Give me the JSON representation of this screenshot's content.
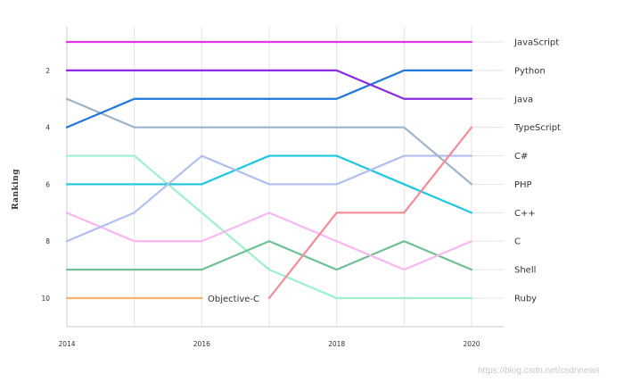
{
  "chart_data": {
    "type": "line",
    "title": "",
    "ylabel": "Ranking",
    "xlabel": "",
    "x": [
      2014,
      2015,
      2016,
      2017,
      2018,
      2019,
      2020
    ],
    "x_tick_labels": [
      "2014",
      "2016",
      "2018",
      "2020"
    ],
    "y_tick_labels": [
      "2",
      "4",
      "6",
      "8",
      "10"
    ],
    "ylim": [
      1,
      10
    ],
    "y_inverted": true,
    "grid": "vertical",
    "legend": "right (labels at line ends)",
    "series": [
      {
        "name": "JavaScript",
        "color": "#e535e8",
        "values": [
          1,
          1,
          1,
          1,
          1,
          1,
          1
        ]
      },
      {
        "name": "Python",
        "color": "#8a2be2",
        "values": [
          2,
          2,
          2,
          2,
          2,
          3,
          3
        ]
      },
      {
        "name": "Java",
        "color": "#1f77d9",
        "values": [
          4,
          3,
          3,
          3,
          3,
          2,
          2
        ]
      },
      {
        "name": "TypeScript",
        "color": "#f28b95",
        "values": [
          null,
          null,
          null,
          10,
          7,
          7,
          4
        ]
      },
      {
        "name": "C#",
        "color": "#9fb3c8",
        "values": [
          3,
          4,
          4,
          4,
          4,
          4,
          6
        ]
      },
      {
        "name": "PHP",
        "color": "#b0bff0",
        "values": [
          8,
          7,
          5,
          6,
          6,
          5,
          5
        ]
      },
      {
        "name": "C++",
        "color": "#1ec6e0",
        "values": [
          6,
          6,
          6,
          5,
          5,
          6,
          7
        ]
      },
      {
        "name": "C",
        "color": "#f9b7f2",
        "values": [
          7,
          8,
          8,
          7,
          8,
          9,
          8
        ]
      },
      {
        "name": "Shell",
        "color": "#6fbf93",
        "values": [
          9,
          9,
          9,
          8,
          9,
          8,
          9
        ]
      },
      {
        "name": "Ruby",
        "color": "#9cf0cc",
        "values": [
          5,
          5,
          7,
          9,
          10,
          10,
          10
        ]
      },
      {
        "name": "Objective-C",
        "color": "#f2b46b",
        "values": [
          10,
          10,
          10,
          null,
          null,
          null,
          null
        ]
      }
    ],
    "right_labels": [
      "JavaScript",
      "Python",
      "Java",
      "TypeScript",
      "C#",
      "PHP",
      "C++",
      "C",
      "Shell",
      "Ruby"
    ],
    "annotations": [
      {
        "text": "Objective-C"
      }
    ]
  },
  "watermark": "https://blog.csdn.net/csdnnews"
}
